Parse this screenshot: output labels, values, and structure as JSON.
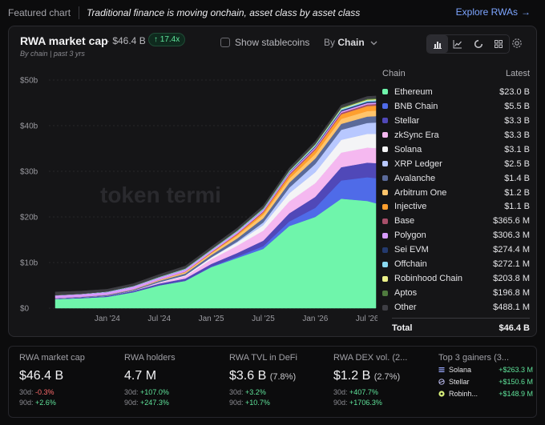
{
  "topbar": {
    "featured_label": "Featured chart",
    "subtitle": "Traditional finance is moving onchain, asset class by asset class",
    "explore_label": "Explore RWAs",
    "explore_arrow": "→"
  },
  "card": {
    "title": "RWA market cap",
    "value": "· $46.4 B",
    "badge": "↑ 17.4x",
    "subtitle": "By chain | past 3 yrs",
    "stablecoins_label": "Show stablecoins",
    "by_label": "By",
    "by_value": "Chain",
    "view_buttons": [
      "bar-chart-icon",
      "line-chart-icon",
      "donut-chart-icon",
      "grid-icon"
    ],
    "watermark": "token termi"
  },
  "chart_data": {
    "type": "area",
    "stacked": true,
    "y_ticks": [
      "$50b",
      "$40b",
      "$30b",
      "$20b",
      "$10b",
      "$0"
    ],
    "x_ticks": [
      "Jan '24",
      "Jul '24",
      "Jan '25",
      "Jul '25",
      "Jan '26",
      "Jul '26"
    ],
    "ylim": [
      0,
      50
    ],
    "y_unit": "billion USD",
    "x": [
      "2023-07",
      "2023-10",
      "2024-01",
      "2024-04",
      "2024-07",
      "2024-10",
      "2025-01",
      "2025-04",
      "2025-07",
      "2025-10",
      "2026-01",
      "2026-04",
      "2026-07",
      "2026-08"
    ],
    "series": [
      {
        "name": "Ethereum",
        "color": "#6ff5ab",
        "values": [
          2.0,
          2.2,
          2.5,
          3.5,
          5.0,
          6.0,
          9.0,
          11.0,
          13.0,
          18.0,
          20.0,
          24.0,
          23.5,
          23.0
        ]
      },
      {
        "name": "BNB Chain",
        "color": "#4f6be8",
        "values": [
          0,
          0,
          0,
          0,
          0,
          0,
          0.1,
          0.3,
          0.6,
          1.0,
          2.0,
          4.0,
          5.2,
          5.5
        ]
      },
      {
        "name": "Stellar",
        "color": "#5048b8",
        "values": [
          0.1,
          0.2,
          0.2,
          0.3,
          0.4,
          0.5,
          0.6,
          0.8,
          1.2,
          1.8,
          2.4,
          2.9,
          3.2,
          3.3
        ]
      },
      {
        "name": "zkSync Era",
        "color": "#f5b8f0",
        "values": [
          0,
          0,
          0,
          0,
          0.2,
          0.5,
          1.0,
          1.6,
          2.2,
          2.6,
          3.0,
          3.2,
          3.3,
          3.3
        ]
      },
      {
        "name": "Solana",
        "color": "#f4f4f6",
        "values": [
          0,
          0,
          0,
          0.05,
          0.1,
          0.2,
          0.4,
          0.7,
          1.2,
          1.8,
          2.4,
          2.8,
          3.0,
          3.1
        ]
      },
      {
        "name": "XRP Ledger",
        "color": "#b8c8ff",
        "values": [
          0,
          0,
          0,
          0,
          0,
          0,
          0.05,
          0.2,
          0.6,
          1.2,
          1.8,
          2.2,
          2.4,
          2.5
        ]
      },
      {
        "name": "Avalanche",
        "color": "#5a6a9a",
        "values": [
          0.1,
          0.1,
          0.2,
          0.2,
          0.3,
          0.4,
          0.5,
          0.7,
          0.9,
          1.1,
          1.2,
          1.3,
          1.4,
          1.4
        ]
      },
      {
        "name": "Arbitrum One",
        "color": "#ffc46b",
        "values": [
          0,
          0,
          0.05,
          0.1,
          0.2,
          0.3,
          0.4,
          0.6,
          0.8,
          0.9,
          1.0,
          1.1,
          1.2,
          1.2
        ]
      },
      {
        "name": "Injective",
        "color": "#ff9f2e",
        "values": [
          0,
          0,
          0,
          0,
          0,
          0.05,
          0.1,
          0.3,
          0.5,
          0.7,
          0.9,
          1.0,
          1.1,
          1.1
        ]
      },
      {
        "name": "Base",
        "color": "#a84f6a",
        "values": [
          0,
          0,
          0,
          0,
          0.02,
          0.05,
          0.1,
          0.15,
          0.2,
          0.25,
          0.3,
          0.33,
          0.36,
          0.37
        ]
      },
      {
        "name": "Polygon",
        "color": "#d89bff",
        "values": [
          0.6,
          0.6,
          0.6,
          0.6,
          0.5,
          0.5,
          0.4,
          0.4,
          0.35,
          0.32,
          0.31,
          0.31,
          0.31,
          0.31
        ]
      },
      {
        "name": "Sei EVM",
        "color": "#243a6e",
        "values": [
          0,
          0,
          0,
          0,
          0,
          0,
          0,
          0,
          0.05,
          0.1,
          0.2,
          0.25,
          0.27,
          0.27
        ]
      },
      {
        "name": "Offchain",
        "color": "#8ad8f0",
        "values": [
          0.05,
          0.05,
          0.1,
          0.1,
          0.12,
          0.15,
          0.17,
          0.2,
          0.22,
          0.24,
          0.26,
          0.27,
          0.27,
          0.27
        ]
      },
      {
        "name": "Robinhood Chain",
        "color": "#ecf08a",
        "values": [
          0,
          0,
          0,
          0,
          0,
          0,
          0,
          0,
          0,
          0.05,
          0.1,
          0.15,
          0.2,
          0.2
        ]
      },
      {
        "name": "Aptos",
        "color": "#4f7a3e",
        "values": [
          0,
          0,
          0,
          0.02,
          0.05,
          0.08,
          0.1,
          0.12,
          0.15,
          0.17,
          0.18,
          0.19,
          0.2,
          0.2
        ]
      },
      {
        "name": "Other",
        "color": "#3e3e44",
        "values": [
          0.7,
          0.6,
          0.5,
          0.5,
          0.5,
          0.5,
          0.5,
          0.5,
          0.5,
          0.5,
          0.5,
          0.5,
          0.49,
          0.49
        ]
      }
    ]
  },
  "legend": {
    "header_chain": "Chain",
    "header_latest": "Latest",
    "items": [
      {
        "name": "Ethereum",
        "value": "$23.0 B",
        "color": "#6ff5ab"
      },
      {
        "name": "BNB Chain",
        "value": "$5.5 B",
        "color": "#4f6be8"
      },
      {
        "name": "Stellar",
        "value": "$3.3 B",
        "color": "#5048b8"
      },
      {
        "name": "zkSync Era",
        "value": "$3.3 B",
        "color": "#f5b8f0"
      },
      {
        "name": "Solana",
        "value": "$3.1 B",
        "color": "#f4f4f6"
      },
      {
        "name": "XRP Ledger",
        "value": "$2.5 B",
        "color": "#b8c8ff"
      },
      {
        "name": "Avalanche",
        "value": "$1.4 B",
        "color": "#5a6a9a"
      },
      {
        "name": "Arbitrum One",
        "value": "$1.2 B",
        "color": "#ffc46b"
      },
      {
        "name": "Injective",
        "value": "$1.1 B",
        "color": "#ff9f2e"
      },
      {
        "name": "Base",
        "value": "$365.6 M",
        "color": "#a84f6a"
      },
      {
        "name": "Polygon",
        "value": "$306.3 M",
        "color": "#d89bff"
      },
      {
        "name": "Sei EVM",
        "value": "$274.4 M",
        "color": "#243a6e"
      },
      {
        "name": "Offchain",
        "value": "$272.1 M",
        "color": "#8ad8f0"
      },
      {
        "name": "Robinhood Chain",
        "value": "$203.8 M",
        "color": "#ecf08a"
      },
      {
        "name": "Aptos",
        "value": "$196.8 M",
        "color": "#4f7a3e"
      },
      {
        "name": "Other",
        "value": "$488.1 M",
        "color": "#3e3e44"
      }
    ],
    "total_label": "Total",
    "total_value": "$46.4 B"
  },
  "stats": [
    {
      "label": "RWA market cap",
      "value": "$46.4 B",
      "pct": "",
      "r30_label": "30d:",
      "r30": "-0.3%",
      "r30_dir": "down",
      "r90_label": "90d:",
      "r90": "+2.6%",
      "r90_dir": "up"
    },
    {
      "label": "RWA holders",
      "value": "4.7 M",
      "pct": "",
      "r30_label": "30d:",
      "r30": "+107.0%",
      "r30_dir": "up",
      "r90_label": "90d:",
      "r90": "+247.3%",
      "r90_dir": "up"
    },
    {
      "label": "RWA TVL in DeFi",
      "value": "$3.6 B",
      "pct": "(7.8%)",
      "r30_label": "30d:",
      "r30": "+3.2%",
      "r30_dir": "up",
      "r90_label": "90d:",
      "r90": "+10.7%",
      "r90_dir": "up"
    },
    {
      "label": "RWA DEX vol. (2...",
      "value": "$1.2 B",
      "pct": "(2.7%)",
      "r30_label": "30d:",
      "r30": "+407.7%",
      "r30_dir": "up",
      "r90_label": "90d:",
      "r90": "+1706.3%",
      "r90_dir": "up"
    }
  ],
  "gainers": {
    "label": "Top 3 gainers (3...",
    "items": [
      {
        "name": "Solana",
        "value": "+$263.3 M",
        "icon": "solana-icon",
        "color": "#9aa8ff"
      },
      {
        "name": "Stellar",
        "value": "+$150.6 M",
        "icon": "stellar-icon",
        "color": "#c8c8ff"
      },
      {
        "name": "Robinh...",
        "value": "+$148.9 M",
        "icon": "robinhood-icon",
        "color": "#d8f07a"
      }
    ]
  }
}
